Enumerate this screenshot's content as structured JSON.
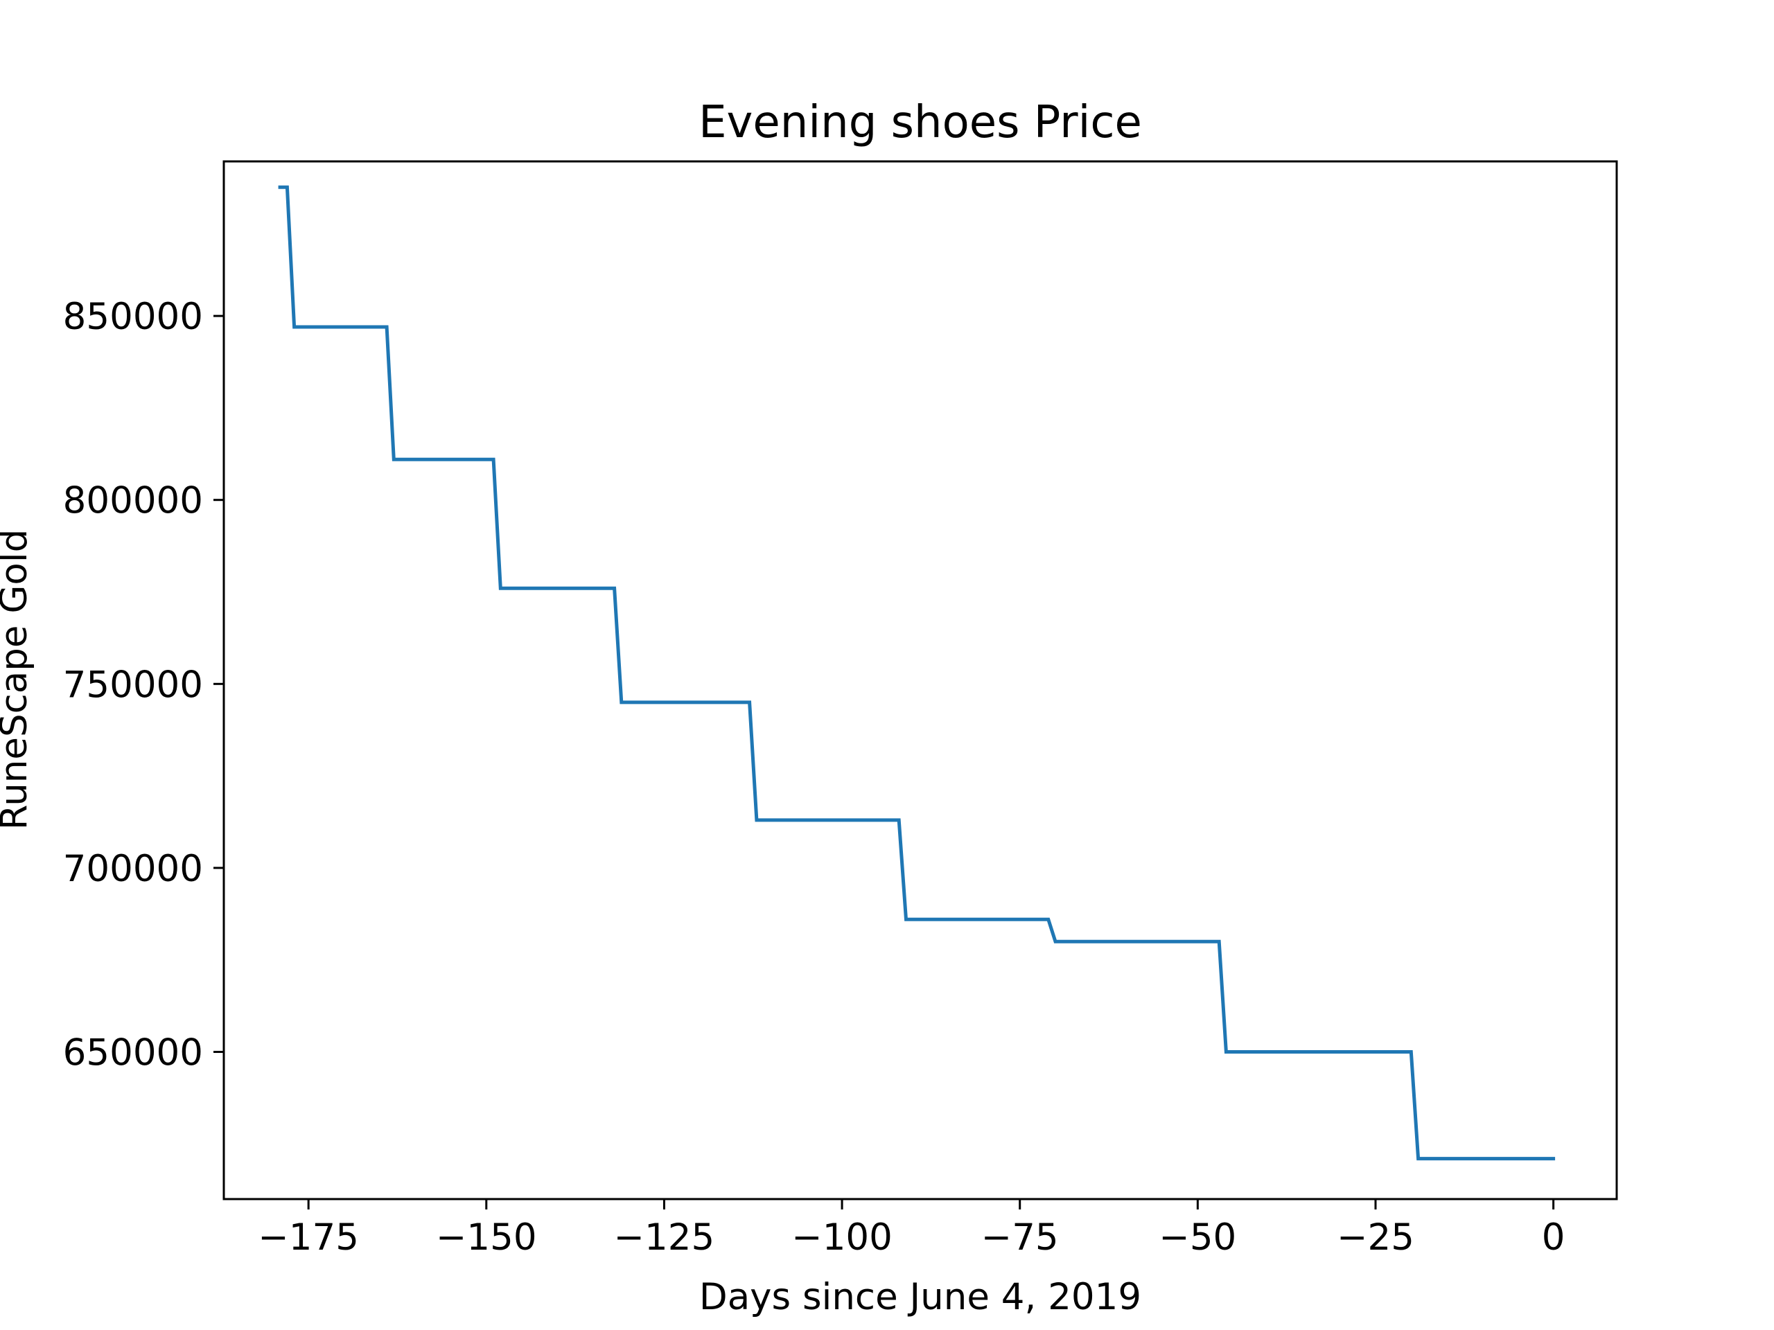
{
  "chart_data": {
    "type": "line",
    "title": "Evening shoes Price",
    "xlabel": "Days since June 4, 2019",
    "ylabel": "RuneScape Gold",
    "xlim": [
      -186.9,
      8.9
    ],
    "ylim": [
      610000,
      892000
    ],
    "grid": false,
    "legend": "none",
    "line_color": "#1f77b4",
    "x_ticks": [
      -175,
      -150,
      -125,
      -100,
      -75,
      -50,
      -25,
      0
    ],
    "x_tick_labels": [
      "−175",
      "−150",
      "−125",
      "−100",
      "−75",
      "−50",
      "−25",
      "0"
    ],
    "y_ticks": [
      650000,
      700000,
      750000,
      800000,
      850000
    ],
    "y_tick_labels": [
      "650000",
      "700000",
      "750000",
      "800000",
      "850000"
    ],
    "series": [
      {
        "x": [
          -179,
          -178,
          -177,
          -164,
          -163,
          -149,
          -148,
          -132,
          -131,
          -113,
          -112,
          -92,
          -91,
          -71,
          -70,
          -47,
          -46,
          -20,
          -19,
          0
        ],
        "y": [
          885000,
          885000,
          847000,
          847000,
          811000,
          811000,
          776000,
          776000,
          745000,
          745000,
          713000,
          713000,
          686000,
          686000,
          680000,
          680000,
          650000,
          650000,
          621000,
          621000
        ]
      }
    ]
  }
}
